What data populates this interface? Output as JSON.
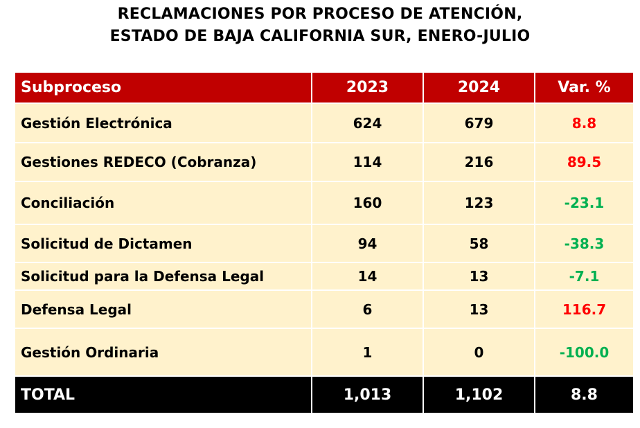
{
  "title": {
    "line1": "RECLAMACIONES POR PROCESO DE ATENCIÓN,",
    "line2": "ESTADO DE BAJA CALIFORNIA SUR, ENERO-JULIO"
  },
  "headers": [
    "Subproceso",
    "2023",
    "2024",
    "Var. %"
  ],
  "rows": [
    {
      "name": "Gestión Electrónica",
      "y2023": "624",
      "y2024": "679",
      "var": "8.8",
      "sign": "pos"
    },
    {
      "name": "Gestiones REDECO (Cobranza)",
      "y2023": "114",
      "y2024": "216",
      "var": "89.5",
      "sign": "pos"
    },
    {
      "name": "Conciliación",
      "y2023": "160",
      "y2024": "123",
      "var": "-23.1",
      "sign": "neg"
    },
    {
      "name": "Solicitud de Dictamen",
      "y2023": "94",
      "y2024": "58",
      "var": "-38.3",
      "sign": "neg"
    },
    {
      "name": "Solicitud para la Defensa Legal",
      "y2023": "14",
      "y2024": "13",
      "var": "-7.1",
      "sign": "neg"
    },
    {
      "name": "Defensa Legal",
      "y2023": "6",
      "y2024": "13",
      "var": "116.7",
      "sign": "pos"
    },
    {
      "name": "Gestión Ordinaria",
      "y2023": "1",
      "y2024": "0",
      "var": "-100.0",
      "sign": "neg"
    }
  ],
  "total": {
    "name": "TOTAL",
    "y2023": "1,013",
    "y2024": "1,102",
    "var": "8.8"
  },
  "colors": {
    "header": "#c00000",
    "row": "#fff2cc",
    "positive": "#ff0000",
    "negative": "#00b050"
  }
}
